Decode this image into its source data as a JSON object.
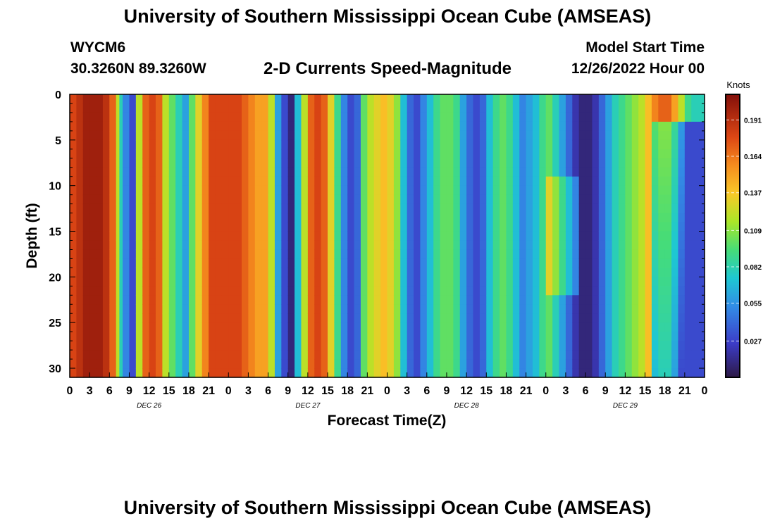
{
  "header": {
    "title": "University of Southern Mississippi Ocean Cube (AMSEAS)",
    "station_id": "WYCM6",
    "coordinates": "30.3260N  89.3260W",
    "subtitle": "2-D Currents Speed-Magnitude",
    "model_start_label": "Model Start Time",
    "model_start_value": "12/26/2022 Hour 00"
  },
  "footer": {
    "title": "University of Southern Mississippi Ocean Cube (AMSEAS)"
  },
  "chart_data": {
    "type": "heatmap",
    "title": "2-D Currents Speed-Magnitude",
    "xlabel": "Forecast Time(Z)",
    "ylabel": "Depth (ft)",
    "xlim": [
      0,
      96
    ],
    "ylim": [
      31,
      0
    ],
    "x_tick_labels": [
      "0",
      "3",
      "6",
      "9",
      "12",
      "15",
      "18",
      "21",
      "0",
      "3",
      "6",
      "9",
      "12",
      "15",
      "18",
      "21",
      "0",
      "3",
      "6",
      "9",
      "12",
      "15",
      "18",
      "21",
      "0",
      "3",
      "6",
      "9",
      "12",
      "15",
      "18",
      "21",
      "0"
    ],
    "date_labels": [
      {
        "label": "DEC 26",
        "hour": 12
      },
      {
        "label": "DEC 27",
        "hour": 36
      },
      {
        "label": "DEC 28",
        "hour": 60
      },
      {
        "label": "DEC 29",
        "hour": 84
      }
    ],
    "y_ticks": [
      0,
      5,
      10,
      15,
      20,
      25,
      30
    ],
    "colorbar": {
      "label": "Knots",
      "min": 0.0,
      "max": 0.21,
      "ticks": [
        0.191,
        0.164,
        0.137,
        0.109,
        0.082,
        0.055,
        0.027
      ]
    },
    "speed_profile_knots": {
      "hours": [
        0,
        1,
        2,
        3,
        4,
        5,
        6,
        7,
        7.5,
        8,
        9,
        10,
        11,
        12,
        13,
        14,
        15,
        16,
        17,
        18,
        19,
        20,
        21,
        22,
        23,
        24,
        25,
        26,
        27,
        28,
        29,
        30,
        31,
        32,
        33,
        34,
        35,
        36,
        37,
        38,
        39,
        40,
        41,
        42,
        43,
        44,
        45,
        46,
        47,
        48,
        49,
        50,
        51,
        52,
        53,
        54,
        55,
        56,
        57,
        58,
        59,
        60,
        61,
        62,
        63,
        64,
        65,
        66,
        67,
        68,
        69,
        70,
        71,
        72,
        73,
        74,
        75,
        76,
        77,
        78,
        79,
        80,
        81,
        82,
        83,
        84,
        85,
        86,
        87,
        88,
        89,
        90,
        91,
        92,
        93,
        94,
        95,
        96
      ],
      "surface": [
        0.18,
        0.19,
        0.2,
        0.2,
        0.2,
        0.19,
        0.17,
        0.12,
        0.08,
        0.05,
        0.03,
        0.12,
        0.17,
        0.18,
        0.17,
        0.12,
        0.1,
        0.08,
        0.06,
        0.1,
        0.13,
        0.16,
        0.18,
        0.18,
        0.18,
        0.18,
        0.18,
        0.17,
        0.16,
        0.15,
        0.15,
        0.12,
        0.06,
        0.03,
        0.01,
        0.07,
        0.12,
        0.17,
        0.18,
        0.17,
        0.13,
        0.09,
        0.05,
        0.03,
        0.04,
        0.1,
        0.12,
        0.13,
        0.14,
        0.13,
        0.11,
        0.07,
        0.04,
        0.03,
        0.05,
        0.07,
        0.09,
        0.1,
        0.1,
        0.09,
        0.06,
        0.04,
        0.03,
        0.04,
        0.07,
        0.09,
        0.1,
        0.09,
        0.07,
        0.05,
        0.06,
        0.07,
        0.09,
        0.1,
        0.08,
        0.06,
        0.04,
        0.02,
        0.01,
        0.01,
        0.02,
        0.04,
        0.06,
        0.08,
        0.09,
        0.1,
        0.11,
        0.12,
        0.14,
        0.16,
        0.17,
        0.17,
        0.15,
        0.12,
        0.09,
        0.08,
        0.08,
        0.08
      ]
    }
  }
}
